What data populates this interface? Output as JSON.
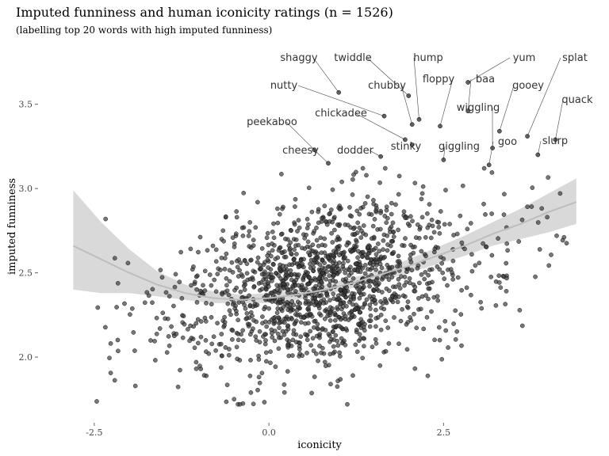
{
  "chart_data": {
    "type": "scatter",
    "title": "Imputed funniness and human iconicity ratings (n = 1526)",
    "subtitle": "(labelling top 20 words with high imputed funniness)",
    "xlabel": "iconicity",
    "ylabel": "imputed funniness",
    "xlim": [
      -3.1,
      4.55
    ],
    "ylim": [
      1.62,
      3.86
    ],
    "x_ticks": [
      {
        "value": -2.5,
        "label": "-2.5"
      },
      {
        "value": 0,
        "label": "0.0"
      },
      {
        "value": 2.5,
        "label": "2.5"
      }
    ],
    "y_ticks": [
      {
        "value": 2.0,
        "label": "2.0"
      },
      {
        "value": 2.5,
        "label": "2.5"
      },
      {
        "value": 3.0,
        "label": "3.0"
      },
      {
        "value": 3.5,
        "label": "3.5"
      }
    ],
    "n": 1526,
    "grid": false,
    "point_color": "#3d3d3d",
    "smooth_line_color": "#bdbdbd",
    "ribbon_color": "#cccccc",
    "smooth_fit": [
      {
        "x": -2.8,
        "y": 2.66,
        "lo": 2.4,
        "hi": 2.99
      },
      {
        "x": -2.4,
        "y": 2.58,
        "lo": 2.38,
        "hi": 2.8
      },
      {
        "x": -2.0,
        "y": 2.5,
        "lo": 2.38,
        "hi": 2.64
      },
      {
        "x": -1.6,
        "y": 2.43,
        "lo": 2.36,
        "hi": 2.51
      },
      {
        "x": -1.2,
        "y": 2.38,
        "lo": 2.34,
        "hi": 2.43
      },
      {
        "x": -0.8,
        "y": 2.35,
        "lo": 2.32,
        "hi": 2.39
      },
      {
        "x": -0.4,
        "y": 2.34,
        "lo": 2.32,
        "hi": 2.37
      },
      {
        "x": 0.0,
        "y": 2.35,
        "lo": 2.32,
        "hi": 2.38
      },
      {
        "x": 0.4,
        "y": 2.37,
        "lo": 2.34,
        "hi": 2.4
      },
      {
        "x": 0.8,
        "y": 2.4,
        "lo": 2.37,
        "hi": 2.43
      },
      {
        "x": 1.2,
        "y": 2.44,
        "lo": 2.41,
        "hi": 2.47
      },
      {
        "x": 1.6,
        "y": 2.49,
        "lo": 2.45,
        "hi": 2.52
      },
      {
        "x": 2.0,
        "y": 2.54,
        "lo": 2.5,
        "hi": 2.58
      },
      {
        "x": 2.4,
        "y": 2.6,
        "lo": 2.55,
        "hi": 2.65
      },
      {
        "x": 2.8,
        "y": 2.66,
        "lo": 2.6,
        "hi": 2.72
      },
      {
        "x": 3.2,
        "y": 2.73,
        "lo": 2.66,
        "hi": 2.8
      },
      {
        "x": 3.6,
        "y": 2.79,
        "lo": 2.7,
        "hi": 2.88
      },
      {
        "x": 4.0,
        "y": 2.86,
        "lo": 2.74,
        "hi": 2.97
      },
      {
        "x": 4.4,
        "y": 2.92,
        "lo": 2.79,
        "hi": 3.06
      }
    ],
    "labelled_points": [
      {
        "word": "shaggy",
        "x": 1.0,
        "y": 3.57
      },
      {
        "word": "twiddle",
        "x": 2.0,
        "y": 3.55
      },
      {
        "word": "hump",
        "x": 2.15,
        "y": 3.41
      },
      {
        "word": "yum",
        "x": 2.85,
        "y": 3.63
      },
      {
        "word": "splat",
        "x": 3.7,
        "y": 3.31
      },
      {
        "word": "nutty",
        "x": 1.65,
        "y": 3.43
      },
      {
        "word": "chubby",
        "x": 2.05,
        "y": 3.38
      },
      {
        "word": "floppy",
        "x": 2.45,
        "y": 3.37
      },
      {
        "word": "baa",
        "x": 2.85,
        "y": 3.46
      },
      {
        "word": "gooey",
        "x": 3.3,
        "y": 3.34
      },
      {
        "word": "quack",
        "x": 4.1,
        "y": 3.29
      },
      {
        "word": "wiggling",
        "x": 3.2,
        "y": 3.24
      },
      {
        "word": "peekaboo",
        "x": 0.65,
        "y": 3.23
      },
      {
        "word": "chickadee",
        "x": 1.95,
        "y": 3.29
      },
      {
        "word": "cheesy",
        "x": 0.85,
        "y": 3.15
      },
      {
        "word": "dodder",
        "x": 1.6,
        "y": 3.19
      },
      {
        "word": "stinky",
        "x": 2.05,
        "y": 3.26
      },
      {
        "word": "giggling",
        "x": 2.5,
        "y": 3.17
      },
      {
        "word": "goo",
        "x": 3.15,
        "y": 3.14
      },
      {
        "word": "slurp",
        "x": 3.85,
        "y": 3.2
      }
    ]
  }
}
